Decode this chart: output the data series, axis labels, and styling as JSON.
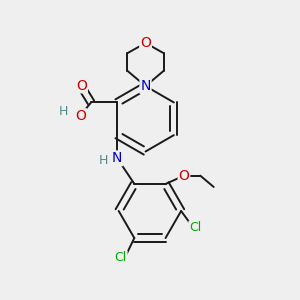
{
  "bg_color": "#efefef",
  "bond_color": "#1a1a1a",
  "bond_width": 1.4,
  "dbo": 0.12,
  "atom_colors": {
    "N": "#0000cc",
    "O": "#cc0000",
    "Cl": "#00aa00",
    "H": "#558888"
  },
  "fs": 9.5,
  "fig_size": [
    3.0,
    3.0
  ],
  "dpi": 100
}
